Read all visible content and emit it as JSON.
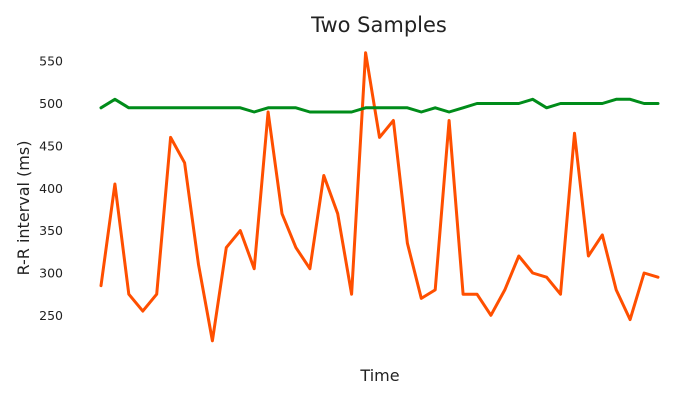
{
  "chart_data": {
    "type": "line",
    "title": "Two Samples",
    "xlabel": "Time",
    "ylabel": "R-R interval (ms)",
    "ylim": [
      202,
      575
    ],
    "yticks": [
      250,
      300,
      350,
      400,
      450,
      500,
      550
    ],
    "grid": false,
    "x": [
      0,
      1,
      2,
      3,
      4,
      5,
      6,
      7,
      8,
      9,
      10,
      11,
      12,
      13,
      14,
      15,
      16,
      17,
      18,
      19,
      20,
      21,
      22,
      23,
      24,
      25,
      26,
      27,
      28,
      29,
      30,
      31,
      32,
      33,
      34,
      35,
      36,
      37,
      38,
      39,
      40
    ],
    "series": [
      {
        "color": "#ff4f00",
        "values": [
          285,
          405,
          275,
          255,
          275,
          460,
          430,
          310,
          220,
          330,
          350,
          305,
          490,
          370,
          330,
          305,
          415,
          370,
          275,
          560,
          460,
          480,
          335,
          270,
          280,
          480,
          275,
          275,
          250,
          280,
          320,
          300,
          295,
          275,
          465,
          320,
          345,
          280,
          245,
          300,
          295
        ]
      },
      {
        "color": "#008c1a",
        "values": [
          495,
          505,
          495,
          495,
          495,
          495,
          495,
          495,
          495,
          495,
          495,
          490,
          495,
          495,
          495,
          490,
          490,
          490,
          490,
          495,
          495,
          495,
          495,
          490,
          495,
          490,
          495,
          500,
          500,
          500,
          500,
          505,
          495,
          500,
          500,
          500,
          500,
          505,
          505,
          500,
          500
        ]
      }
    ]
  }
}
